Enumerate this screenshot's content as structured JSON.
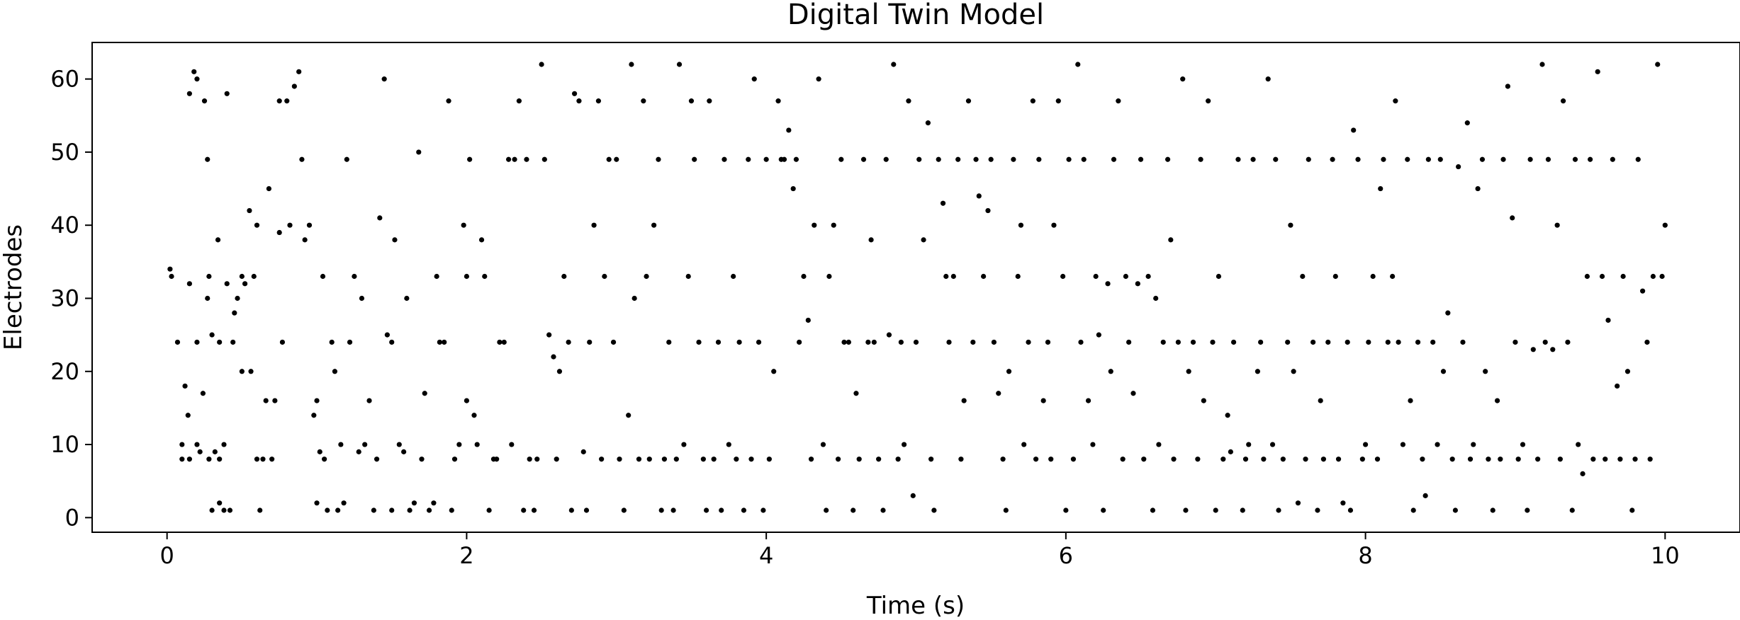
{
  "chart_data": {
    "type": "scatter",
    "title": "Digital Twin Model",
    "xlabel": "Time (s)",
    "ylabel": "Electrodes",
    "xlim": [
      -0.5,
      10.5
    ],
    "ylim": [
      -2,
      65
    ],
    "xticks": [
      0,
      2,
      4,
      6,
      8,
      10
    ],
    "yticks": [
      0,
      10,
      20,
      30,
      40,
      50,
      60
    ],
    "grid": false,
    "marker_color": "#000000",
    "points": [
      [
        0.02,
        34
      ],
      [
        0.03,
        33
      ],
      [
        0.07,
        24
      ],
      [
        0.1,
        10
      ],
      [
        0.1,
        8
      ],
      [
        0.12,
        18
      ],
      [
        0.14,
        14
      ],
      [
        0.15,
        8
      ],
      [
        0.15,
        32
      ],
      [
        0.15,
        58
      ],
      [
        0.18,
        61
      ],
      [
        0.2,
        60
      ],
      [
        0.2,
        24
      ],
      [
        0.2,
        10
      ],
      [
        0.22,
        9
      ],
      [
        0.24,
        17
      ],
      [
        0.25,
        57
      ],
      [
        0.27,
        30
      ],
      [
        0.27,
        49
      ],
      [
        0.28,
        8
      ],
      [
        0.28,
        33
      ],
      [
        0.3,
        1
      ],
      [
        0.3,
        25
      ],
      [
        0.32,
        9
      ],
      [
        0.34,
        38
      ],
      [
        0.35,
        2
      ],
      [
        0.35,
        24
      ],
      [
        0.35,
        8
      ],
      [
        0.38,
        1
      ],
      [
        0.38,
        10
      ],
      [
        0.4,
        32
      ],
      [
        0.4,
        58
      ],
      [
        0.42,
        1
      ],
      [
        0.44,
        24
      ],
      [
        0.45,
        28
      ],
      [
        0.47,
        30
      ],
      [
        0.5,
        20
      ],
      [
        0.5,
        33
      ],
      [
        0.52,
        32
      ],
      [
        0.55,
        42
      ],
      [
        0.56,
        20
      ],
      [
        0.58,
        33
      ],
      [
        0.6,
        8
      ],
      [
        0.6,
        40
      ],
      [
        0.62,
        1
      ],
      [
        0.64,
        8
      ],
      [
        0.66,
        16
      ],
      [
        0.68,
        45
      ],
      [
        0.7,
        8
      ],
      [
        0.72,
        16
      ],
      [
        0.75,
        39
      ],
      [
        0.75,
        57
      ],
      [
        0.77,
        24
      ],
      [
        0.8,
        57
      ],
      [
        0.82,
        40
      ],
      [
        0.85,
        59
      ],
      [
        0.88,
        61
      ],
      [
        0.9,
        49
      ],
      [
        0.92,
        38
      ],
      [
        0.95,
        40
      ],
      [
        0.98,
        14
      ],
      [
        1.0,
        2
      ],
      [
        1.0,
        16
      ],
      [
        1.02,
        9
      ],
      [
        1.04,
        33
      ],
      [
        1.05,
        8
      ],
      [
        1.07,
        1
      ],
      [
        1.1,
        24
      ],
      [
        1.12,
        20
      ],
      [
        1.14,
        1
      ],
      [
        1.16,
        10
      ],
      [
        1.18,
        2
      ],
      [
        1.2,
        49
      ],
      [
        1.22,
        24
      ],
      [
        1.25,
        33
      ],
      [
        1.28,
        9
      ],
      [
        1.3,
        30
      ],
      [
        1.32,
        10
      ],
      [
        1.35,
        16
      ],
      [
        1.38,
        1
      ],
      [
        1.4,
        8
      ],
      [
        1.42,
        41
      ],
      [
        1.45,
        60
      ],
      [
        1.47,
        25
      ],
      [
        1.5,
        24
      ],
      [
        1.5,
        1
      ],
      [
        1.52,
        38
      ],
      [
        1.55,
        10
      ],
      [
        1.58,
        9
      ],
      [
        1.6,
        30
      ],
      [
        1.62,
        1
      ],
      [
        1.65,
        2
      ],
      [
        1.68,
        50
      ],
      [
        1.7,
        8
      ],
      [
        1.72,
        17
      ],
      [
        1.75,
        1
      ],
      [
        1.78,
        2
      ],
      [
        1.8,
        33
      ],
      [
        1.82,
        24
      ],
      [
        1.85,
        24
      ],
      [
        1.88,
        57
      ],
      [
        1.9,
        1
      ],
      [
        1.92,
        8
      ],
      [
        1.95,
        10
      ],
      [
        1.98,
        40
      ],
      [
        2.0,
        16
      ],
      [
        2.0,
        33
      ],
      [
        2.02,
        49
      ],
      [
        2.05,
        14
      ],
      [
        2.07,
        10
      ],
      [
        2.1,
        38
      ],
      [
        2.12,
        33
      ],
      [
        2.15,
        1
      ],
      [
        2.18,
        8
      ],
      [
        2.2,
        8
      ],
      [
        2.22,
        24
      ],
      [
        2.25,
        24
      ],
      [
        2.28,
        49
      ],
      [
        2.3,
        10
      ],
      [
        2.32,
        49
      ],
      [
        2.35,
        57
      ],
      [
        2.38,
        1
      ],
      [
        2.4,
        49
      ],
      [
        2.42,
        8
      ],
      [
        2.45,
        1
      ],
      [
        2.47,
        8
      ],
      [
        2.5,
        62
      ],
      [
        2.52,
        49
      ],
      [
        2.55,
        25
      ],
      [
        2.58,
        22
      ],
      [
        2.6,
        8
      ],
      [
        2.62,
        20
      ],
      [
        2.65,
        33
      ],
      [
        2.68,
        24
      ],
      [
        2.7,
        1
      ],
      [
        2.72,
        58
      ],
      [
        2.75,
        57
      ],
      [
        2.78,
        9
      ],
      [
        2.8,
        1
      ],
      [
        2.82,
        24
      ],
      [
        2.85,
        40
      ],
      [
        2.88,
        57
      ],
      [
        2.9,
        8
      ],
      [
        2.92,
        33
      ],
      [
        2.95,
        49
      ],
      [
        2.98,
        24
      ],
      [
        3.0,
        49
      ],
      [
        3.02,
        8
      ],
      [
        3.05,
        1
      ],
      [
        3.08,
        14
      ],
      [
        3.1,
        62
      ],
      [
        3.12,
        30
      ],
      [
        3.15,
        8
      ],
      [
        3.18,
        57
      ],
      [
        3.2,
        33
      ],
      [
        3.22,
        8
      ],
      [
        3.25,
        40
      ],
      [
        3.28,
        49
      ],
      [
        3.3,
        1
      ],
      [
        3.32,
        8
      ],
      [
        3.35,
        24
      ],
      [
        3.38,
        1
      ],
      [
        3.4,
        8
      ],
      [
        3.42,
        62
      ],
      [
        3.45,
        10
      ],
      [
        3.48,
        33
      ],
      [
        3.5,
        57
      ],
      [
        3.52,
        49
      ],
      [
        3.55,
        24
      ],
      [
        3.58,
        8
      ],
      [
        3.6,
        1
      ],
      [
        3.62,
        57
      ],
      [
        3.65,
        8
      ],
      [
        3.68,
        24
      ],
      [
        3.7,
        1
      ],
      [
        3.72,
        49
      ],
      [
        3.75,
        10
      ],
      [
        3.78,
        33
      ],
      [
        3.8,
        8
      ],
      [
        3.82,
        24
      ],
      [
        3.85,
        1
      ],
      [
        3.88,
        49
      ],
      [
        3.9,
        8
      ],
      [
        3.92,
        60
      ],
      [
        3.95,
        24
      ],
      [
        3.98,
        1
      ],
      [
        4.0,
        49
      ],
      [
        4.02,
        8
      ],
      [
        4.05,
        20
      ],
      [
        4.08,
        57
      ],
      [
        4.1,
        49
      ],
      [
        4.12,
        49
      ],
      [
        4.15,
        53
      ],
      [
        4.18,
        45
      ],
      [
        4.2,
        49
      ],
      [
        4.22,
        24
      ],
      [
        4.25,
        33
      ],
      [
        4.28,
        27
      ],
      [
        4.3,
        8
      ],
      [
        4.32,
        40
      ],
      [
        4.35,
        60
      ],
      [
        4.38,
        10
      ],
      [
        4.4,
        1
      ],
      [
        4.42,
        33
      ],
      [
        4.45,
        40
      ],
      [
        4.48,
        8
      ],
      [
        4.5,
        49
      ],
      [
        4.52,
        24
      ],
      [
        4.55,
        24
      ],
      [
        4.58,
        1
      ],
      [
        4.6,
        17
      ],
      [
        4.62,
        8
      ],
      [
        4.65,
        49
      ],
      [
        4.68,
        24
      ],
      [
        4.7,
        38
      ],
      [
        4.72,
        24
      ],
      [
        4.75,
        8
      ],
      [
        4.78,
        1
      ],
      [
        4.8,
        49
      ],
      [
        4.82,
        25
      ],
      [
        4.85,
        62
      ],
      [
        4.88,
        8
      ],
      [
        4.9,
        24
      ],
      [
        4.92,
        10
      ],
      [
        4.95,
        57
      ],
      [
        4.98,
        3
      ],
      [
        5.0,
        24
      ],
      [
        5.02,
        49
      ],
      [
        5.05,
        38
      ],
      [
        5.08,
        54
      ],
      [
        5.1,
        8
      ],
      [
        5.12,
        1
      ],
      [
        5.15,
        49
      ],
      [
        5.18,
        43
      ],
      [
        5.2,
        33
      ],
      [
        5.22,
        24
      ],
      [
        5.25,
        33
      ],
      [
        5.28,
        49
      ],
      [
        5.3,
        8
      ],
      [
        5.32,
        16
      ],
      [
        5.35,
        57
      ],
      [
        5.38,
        24
      ],
      [
        5.4,
        49
      ],
      [
        5.42,
        44
      ],
      [
        5.45,
        33
      ],
      [
        5.48,
        42
      ],
      [
        5.5,
        49
      ],
      [
        5.52,
        24
      ],
      [
        5.55,
        17
      ],
      [
        5.58,
        8
      ],
      [
        5.6,
        1
      ],
      [
        5.62,
        20
      ],
      [
        5.65,
        49
      ],
      [
        5.68,
        33
      ],
      [
        5.7,
        40
      ],
      [
        5.72,
        10
      ],
      [
        5.75,
        24
      ],
      [
        5.78,
        57
      ],
      [
        5.8,
        8
      ],
      [
        5.82,
        49
      ],
      [
        5.85,
        16
      ],
      [
        5.88,
        24
      ],
      [
        5.9,
        8
      ],
      [
        5.92,
        40
      ],
      [
        5.95,
        57
      ],
      [
        5.98,
        33
      ],
      [
        6.0,
        1
      ],
      [
        6.02,
        49
      ],
      [
        6.05,
        8
      ],
      [
        6.08,
        62
      ],
      [
        6.1,
        24
      ],
      [
        6.12,
        49
      ],
      [
        6.15,
        16
      ],
      [
        6.18,
        10
      ],
      [
        6.2,
        33
      ],
      [
        6.22,
        25
      ],
      [
        6.25,
        1
      ],
      [
        6.28,
        32
      ],
      [
        6.3,
        20
      ],
      [
        6.32,
        49
      ],
      [
        6.35,
        57
      ],
      [
        6.38,
        8
      ],
      [
        6.4,
        33
      ],
      [
        6.42,
        24
      ],
      [
        6.45,
        17
      ],
      [
        6.48,
        32
      ],
      [
        6.5,
        49
      ],
      [
        6.52,
        8
      ],
      [
        6.55,
        33
      ],
      [
        6.58,
        1
      ],
      [
        6.6,
        30
      ],
      [
        6.62,
        10
      ],
      [
        6.65,
        24
      ],
      [
        6.68,
        49
      ],
      [
        6.7,
        38
      ],
      [
        6.72,
        8
      ],
      [
        6.75,
        24
      ],
      [
        6.78,
        60
      ],
      [
        6.8,
        1
      ],
      [
        6.82,
        20
      ],
      [
        6.85,
        24
      ],
      [
        6.88,
        8
      ],
      [
        6.9,
        49
      ],
      [
        6.92,
        16
      ],
      [
        6.95,
        57
      ],
      [
        6.98,
        24
      ],
      [
        7.0,
        1
      ],
      [
        7.02,
        33
      ],
      [
        7.05,
        8
      ],
      [
        7.08,
        14
      ],
      [
        7.1,
        9
      ],
      [
        7.12,
        24
      ],
      [
        7.15,
        49
      ],
      [
        7.18,
        1
      ],
      [
        7.2,
        8
      ],
      [
        7.22,
        10
      ],
      [
        7.25,
        49
      ],
      [
        7.28,
        20
      ],
      [
        7.3,
        24
      ],
      [
        7.32,
        8
      ],
      [
        7.35,
        60
      ],
      [
        7.38,
        10
      ],
      [
        7.4,
        49
      ],
      [
        7.42,
        1
      ],
      [
        7.45,
        8
      ],
      [
        7.48,
        24
      ],
      [
        7.5,
        40
      ],
      [
        7.52,
        20
      ],
      [
        7.55,
        2
      ],
      [
        7.58,
        33
      ],
      [
        7.6,
        8
      ],
      [
        7.62,
        49
      ],
      [
        7.65,
        24
      ],
      [
        7.68,
        1
      ],
      [
        7.7,
        16
      ],
      [
        7.72,
        8
      ],
      [
        7.75,
        24
      ],
      [
        7.78,
        49
      ],
      [
        7.8,
        33
      ],
      [
        7.82,
        8
      ],
      [
        7.85,
        2
      ],
      [
        7.88,
        24
      ],
      [
        7.9,
        1
      ],
      [
        7.92,
        53
      ],
      [
        7.95,
        49
      ],
      [
        7.98,
        8
      ],
      [
        8.0,
        10
      ],
      [
        8.02,
        24
      ],
      [
        8.05,
        33
      ],
      [
        8.08,
        8
      ],
      [
        8.1,
        45
      ],
      [
        8.12,
        49
      ],
      [
        8.15,
        24
      ],
      [
        8.18,
        33
      ],
      [
        8.2,
        57
      ],
      [
        8.22,
        24
      ],
      [
        8.25,
        10
      ],
      [
        8.28,
        49
      ],
      [
        8.3,
        16
      ],
      [
        8.32,
        1
      ],
      [
        8.35,
        24
      ],
      [
        8.38,
        8
      ],
      [
        8.4,
        3
      ],
      [
        8.42,
        49
      ],
      [
        8.45,
        24
      ],
      [
        8.48,
        10
      ],
      [
        8.5,
        49
      ],
      [
        8.52,
        20
      ],
      [
        8.55,
        28
      ],
      [
        8.58,
        8
      ],
      [
        8.6,
        1
      ],
      [
        8.62,
        48
      ],
      [
        8.65,
        24
      ],
      [
        8.68,
        54
      ],
      [
        8.7,
        8
      ],
      [
        8.72,
        10
      ],
      [
        8.75,
        45
      ],
      [
        8.78,
        49
      ],
      [
        8.8,
        20
      ],
      [
        8.82,
        8
      ],
      [
        8.85,
        1
      ],
      [
        8.88,
        16
      ],
      [
        8.9,
        8
      ],
      [
        8.92,
        49
      ],
      [
        8.95,
        59
      ],
      [
        8.98,
        41
      ],
      [
        9.0,
        24
      ],
      [
        9.02,
        8
      ],
      [
        9.05,
        10
      ],
      [
        9.08,
        1
      ],
      [
        9.1,
        49
      ],
      [
        9.12,
        23
      ],
      [
        9.15,
        8
      ],
      [
        9.18,
        62
      ],
      [
        9.2,
        24
      ],
      [
        9.22,
        49
      ],
      [
        9.25,
        23
      ],
      [
        9.28,
        40
      ],
      [
        9.3,
        8
      ],
      [
        9.32,
        57
      ],
      [
        9.35,
        24
      ],
      [
        9.38,
        1
      ],
      [
        9.4,
        49
      ],
      [
        9.42,
        10
      ],
      [
        9.45,
        6
      ],
      [
        9.48,
        33
      ],
      [
        9.5,
        49
      ],
      [
        9.52,
        8
      ],
      [
        9.55,
        61
      ],
      [
        9.58,
        33
      ],
      [
        9.6,
        8
      ],
      [
        9.62,
        27
      ],
      [
        9.65,
        49
      ],
      [
        9.68,
        18
      ],
      [
        9.7,
        8
      ],
      [
        9.72,
        33
      ],
      [
        9.75,
        20
      ],
      [
        9.78,
        1
      ],
      [
        9.8,
        8
      ],
      [
        9.82,
        49
      ],
      [
        9.85,
        31
      ],
      [
        9.88,
        24
      ],
      [
        9.9,
        8
      ],
      [
        9.92,
        33
      ],
      [
        9.95,
        62
      ],
      [
        9.98,
        33
      ],
      [
        10.0,
        40
      ]
    ]
  }
}
